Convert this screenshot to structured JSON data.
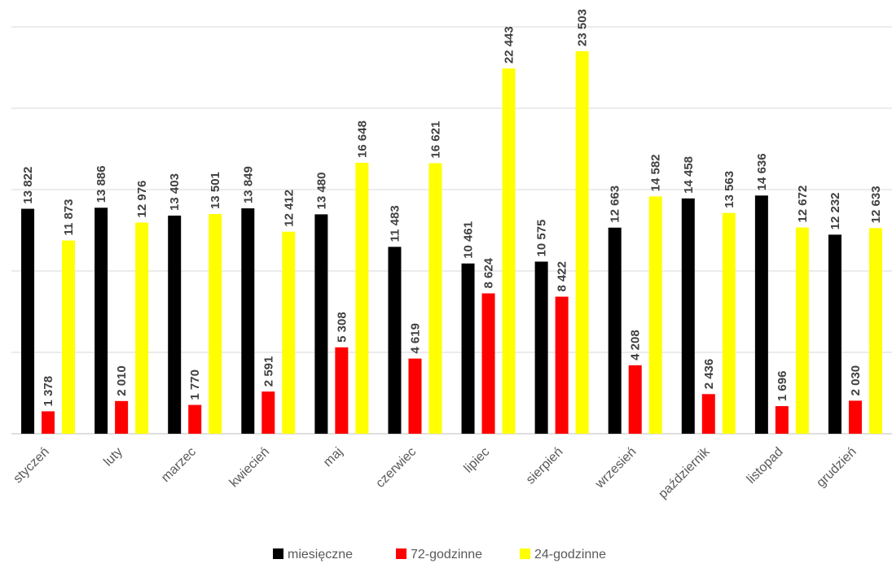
{
  "chart_data": {
    "type": "bar",
    "categories": [
      "styczeń",
      "luty",
      "marzec",
      "kwiecień",
      "maj",
      "czerwiec",
      "lipiec",
      "sierpień",
      "wrzesień",
      "październik",
      "listopad",
      "grudzień"
    ],
    "series": [
      {
        "name": "miesięczne",
        "color": "#000000",
        "values": [
          13822,
          13886,
          13403,
          13849,
          13480,
          11483,
          10461,
          10575,
          12663,
          14458,
          14636,
          12232
        ],
        "labels": [
          "13 822",
          "13 886",
          "13 403",
          "13 849",
          "13 480",
          "11 483",
          "10 461",
          "10 575",
          "12 663",
          "14 458",
          "14 636",
          "12 232"
        ]
      },
      {
        "name": "72-godzinne",
        "color": "#ff0000",
        "values": [
          1378,
          2010,
          1770,
          2591,
          5308,
          4619,
          8624,
          8422,
          4208,
          2436,
          1696,
          2030
        ],
        "labels": [
          "1 378",
          "2 010",
          "1 770",
          "2 591",
          "5 308",
          "4 619",
          "8 624",
          "8 422",
          "4 208",
          "2 436",
          "1 696",
          "2 030"
        ]
      },
      {
        "name": "24-godzinne",
        "color": "#ffff00",
        "values": [
          11873,
          12976,
          13501,
          12412,
          16648,
          16621,
          22443,
          23503,
          14582,
          13563,
          12672,
          12633
        ],
        "labels": [
          "11 873",
          "12 976",
          "13 501",
          "12 412",
          "16 648",
          "16 621",
          "22 443",
          "23 503",
          "14 582",
          "13 563",
          "12 672",
          "12 633"
        ]
      }
    ],
    "ylim": [
      0,
      25000
    ],
    "grid": true,
    "legend_position": "bottom"
  }
}
